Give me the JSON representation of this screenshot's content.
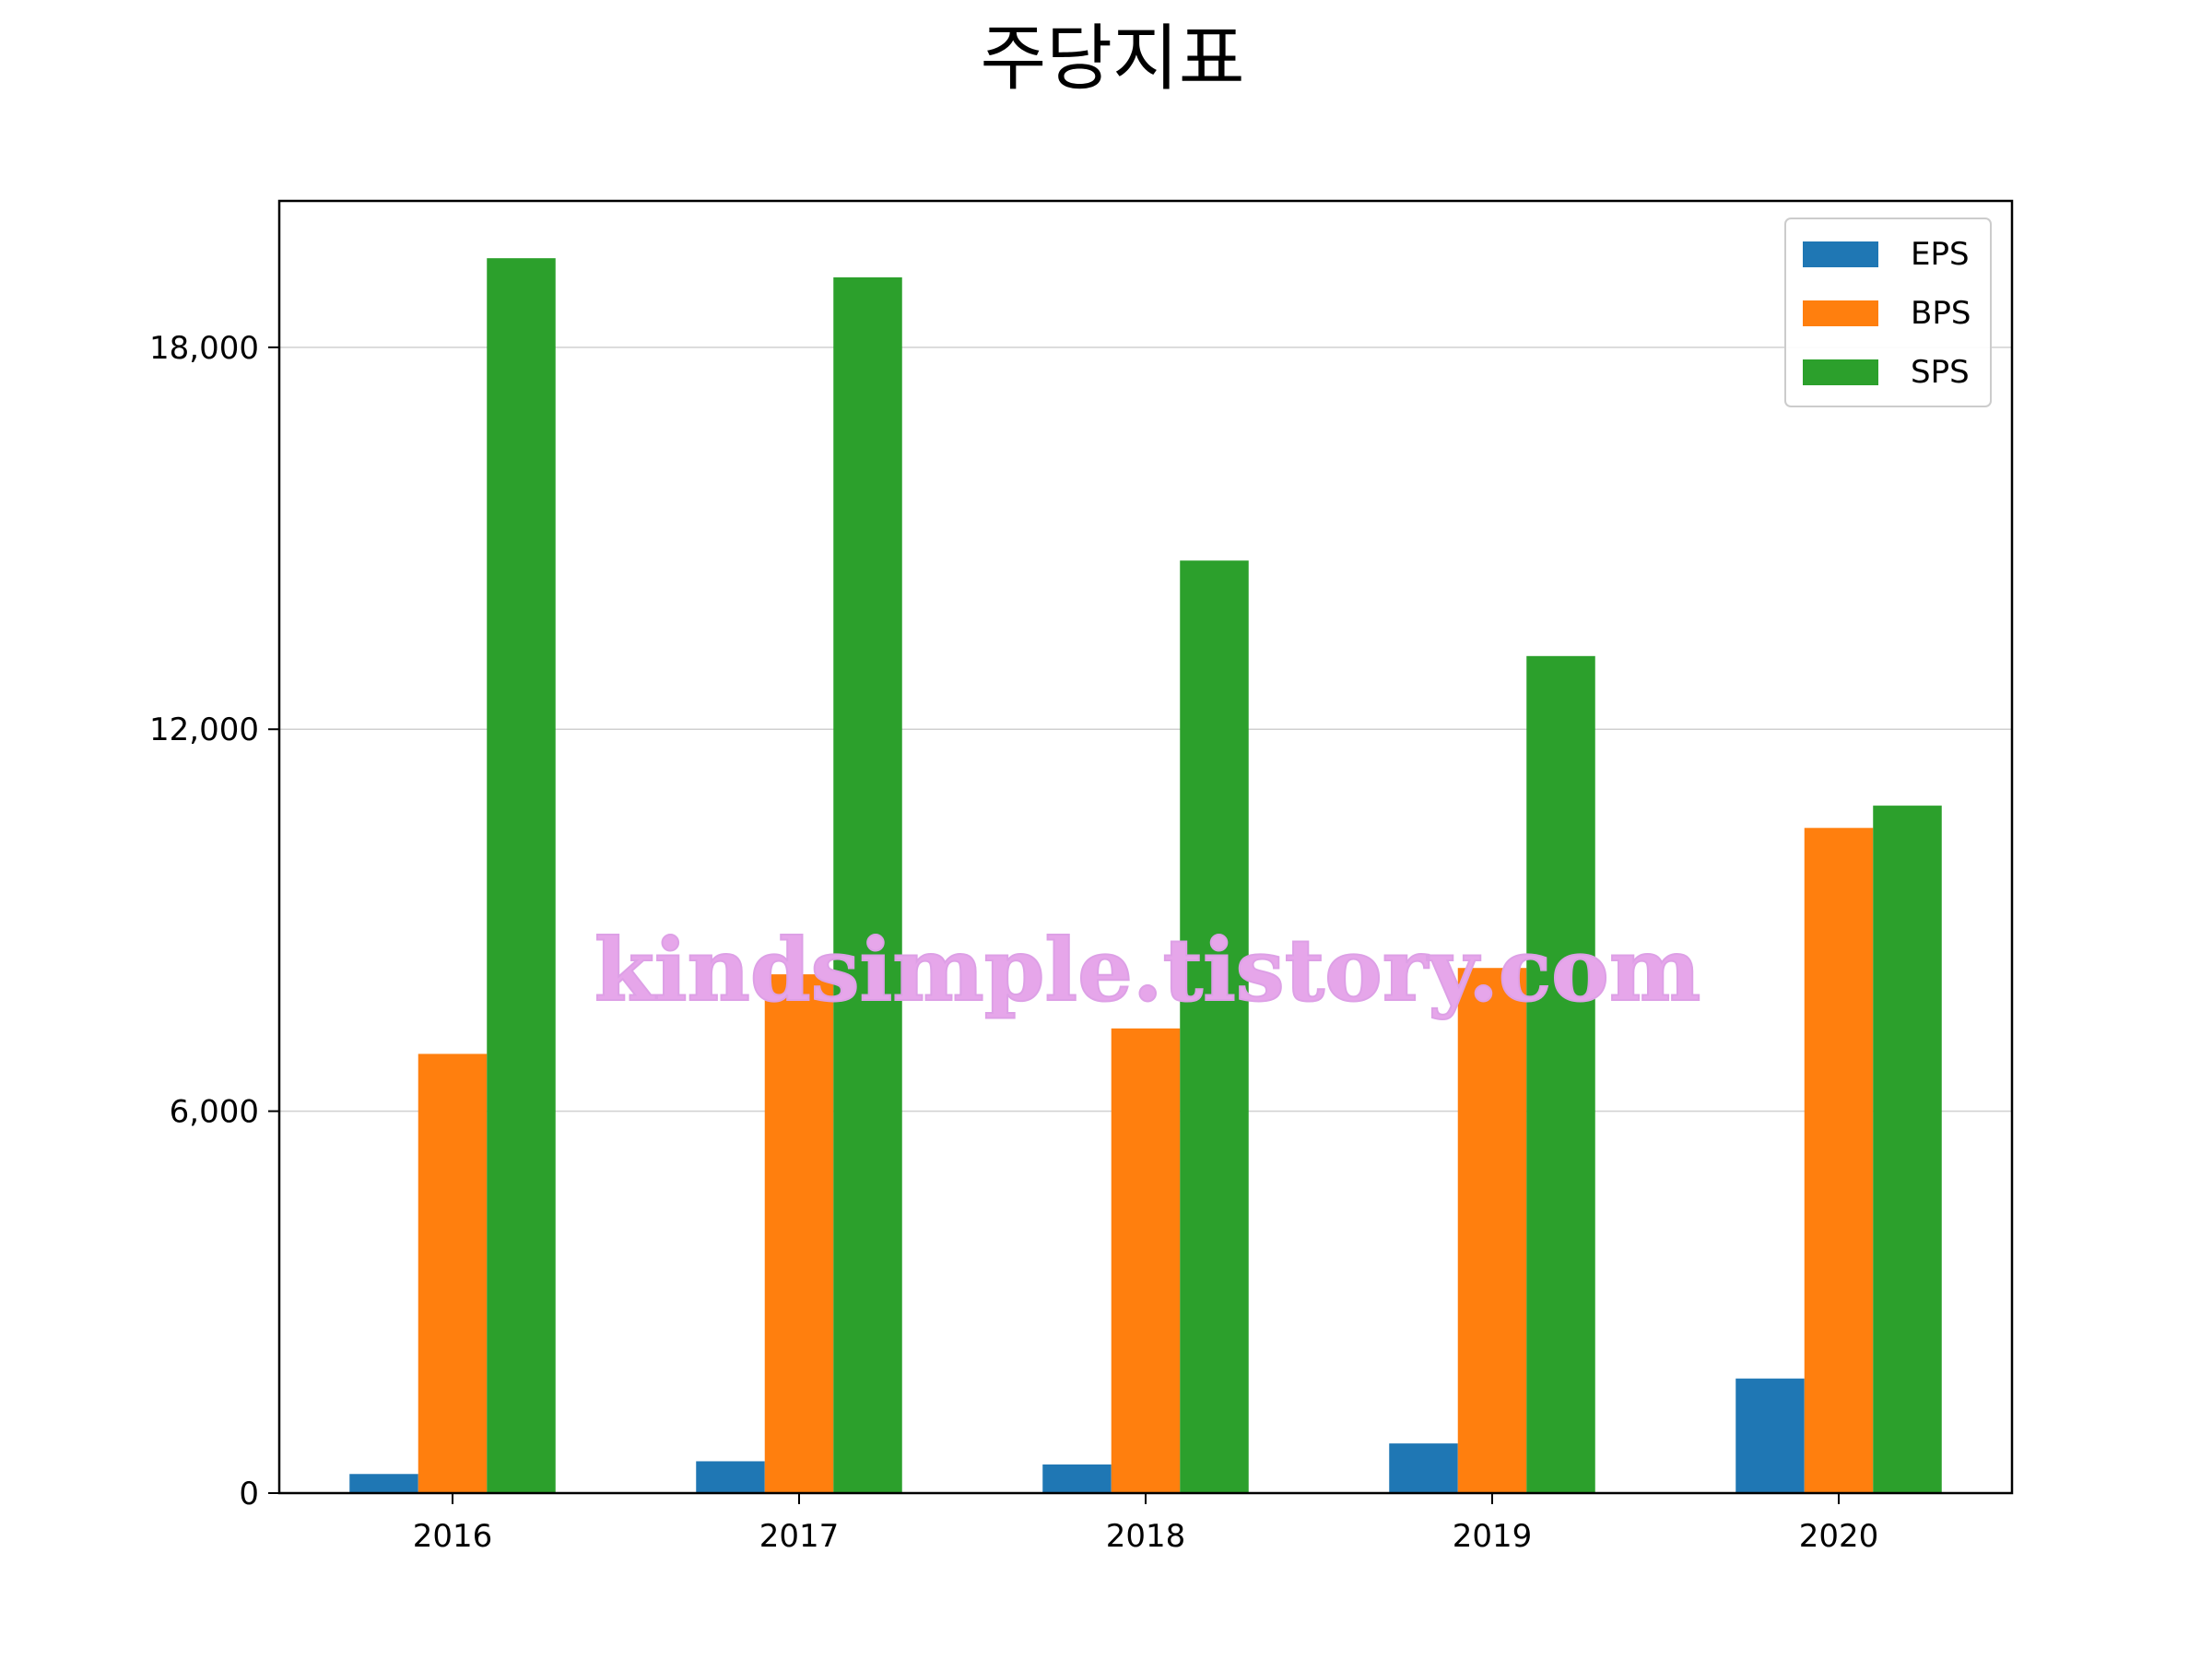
{
  "chart_data": {
    "type": "bar",
    "title": "주당지표",
    "categories": [
      "2016",
      "2017",
      "2018",
      "2019",
      "2020"
    ],
    "series": [
      {
        "name": "EPS",
        "color": "#1f77b4",
        "values": [
          300,
          500,
          450,
          780,
          1800
        ]
      },
      {
        "name": "BPS",
        "color": "#ff7f0e",
        "values": [
          6900,
          8150,
          7300,
          8250,
          10450
        ]
      },
      {
        "name": "SPS",
        "color": "#2ca02c",
        "values": [
          19400,
          19100,
          14650,
          13150,
          10800
        ]
      }
    ],
    "ylim": [
      0,
      20300
    ],
    "yticks": [
      0,
      6000,
      12000,
      18000
    ],
    "ytick_labels": [
      "0",
      "6,000",
      "12,000",
      "18,000"
    ],
    "grid": "horizontal",
    "legend_position": "top-right",
    "xlabel": "",
    "ylabel": ""
  },
  "watermark": "kindsimple.tistory.com"
}
